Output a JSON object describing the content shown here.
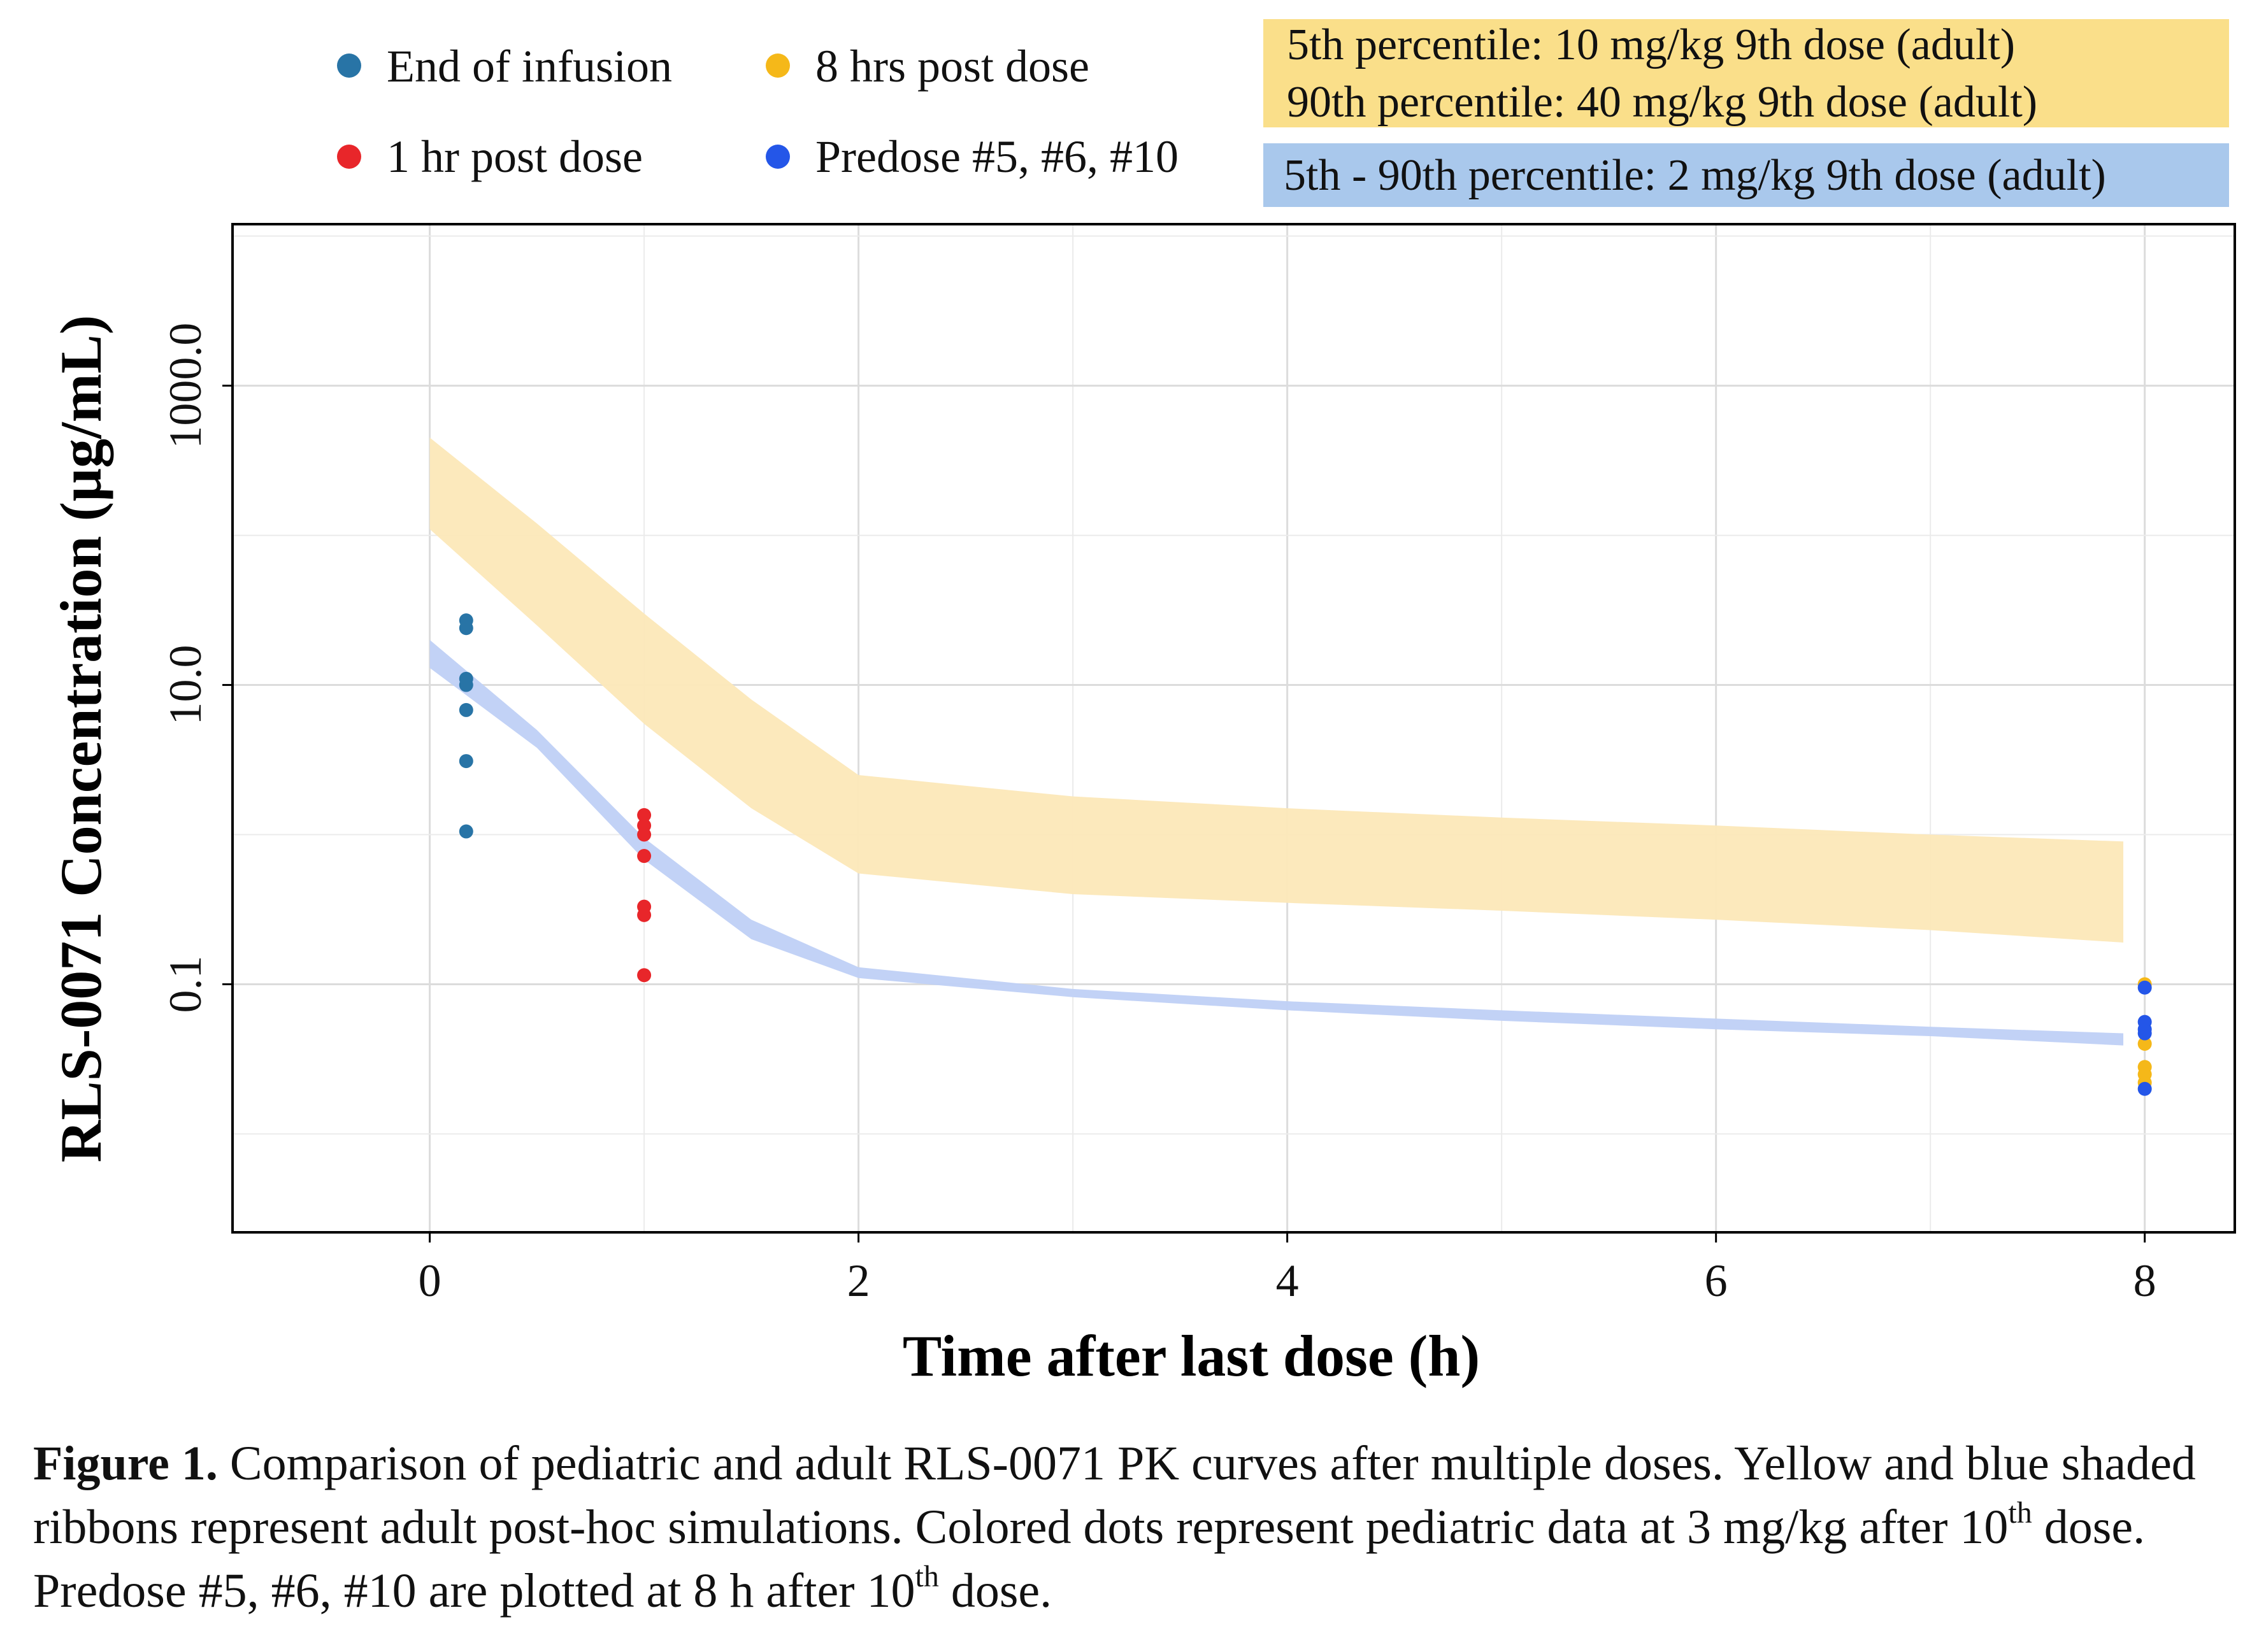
{
  "chart_data": {
    "type": "scatter",
    "xlabel": "Time after last dose (h)",
    "ylabel": "RLS-0071 Concentration (µg/mL)",
    "y_scale": "log",
    "xlim": [
      -0.92,
      8.42
    ],
    "ylim": [
      0.0022,
      12000
    ],
    "x_ticks": [
      0,
      2,
      4,
      6,
      8
    ],
    "x_tick_labels": [
      "0",
      "2",
      "4",
      "6",
      "8"
    ],
    "y_ticks": [
      0.1,
      10.0,
      1000.0
    ],
    "y_tick_labels": [
      "0.1",
      "10.0",
      "1000.0"
    ],
    "grid": true,
    "legend_position": "top",
    "series": [
      {
        "name": "End of infusion",
        "color": "#2874a6",
        "points": [
          [
            0.17,
            27
          ],
          [
            0.17,
            24
          ],
          [
            0.17,
            11
          ],
          [
            0.17,
            10
          ],
          [
            0.17,
            6.8
          ],
          [
            0.17,
            3.1
          ],
          [
            0.17,
            1.05
          ]
        ]
      },
      {
        "name": "1 hr post dose",
        "color": "#e8262a",
        "points": [
          [
            1.0,
            1.35
          ],
          [
            1.0,
            1.15
          ],
          [
            1.0,
            1.0
          ],
          [
            1.0,
            0.72
          ],
          [
            1.0,
            0.33
          ],
          [
            1.0,
            0.29
          ],
          [
            1.0,
            0.115
          ]
        ]
      },
      {
        "name": "8 hrs post dose",
        "color": "#f5b819",
        "points": [
          [
            8.0,
            0.1
          ],
          [
            8.0,
            0.04
          ],
          [
            8.0,
            0.028
          ],
          [
            8.0,
            0.025
          ],
          [
            8.0,
            0.022
          ]
        ]
      },
      {
        "name": "Predose #5, #6, #10",
        "color": "#2456e8",
        "points": [
          [
            8.0,
            0.095
          ],
          [
            8.0,
            0.056
          ],
          [
            8.0,
            0.05
          ],
          [
            8.0,
            0.047
          ],
          [
            8.0,
            0.02
          ]
        ]
      }
    ],
    "ribbons": [
      {
        "name": "5th percentile: 10 mg/kg 9th dose (adult) / 90th percentile: 40 mg/kg 9th dose (adult)",
        "color": "#fce8b8",
        "x": [
          0,
          0.5,
          1,
          1.5,
          2,
          3,
          4,
          5,
          6,
          7,
          7.9
        ],
        "lower": [
          110,
          25,
          5.5,
          1.5,
          0.55,
          0.4,
          0.35,
          0.31,
          0.27,
          0.23,
          0.19
        ],
        "upper": [
          450,
          120,
          30,
          8,
          2.5,
          1.8,
          1.5,
          1.3,
          1.15,
          1.0,
          0.9
        ]
      },
      {
        "name": "5th - 90th percentile: 2 mg/kg 9th dose (adult)",
        "color": "#bfd0f6",
        "x": [
          0,
          0.5,
          1,
          1.5,
          2,
          3,
          4,
          5,
          6,
          7,
          7.9
        ],
        "lower": [
          13,
          3.8,
          0.68,
          0.2,
          0.11,
          0.082,
          0.067,
          0.057,
          0.05,
          0.045,
          0.039
        ],
        "upper": [
          20,
          5.0,
          0.95,
          0.27,
          0.13,
          0.093,
          0.077,
          0.067,
          0.059,
          0.052,
          0.047
        ]
      }
    ]
  },
  "legend": {
    "items": [
      {
        "label": "End of infusion",
        "color": "#2874a6"
      },
      {
        "label": "8 hrs post dose",
        "color": "#f5b819"
      },
      {
        "label": "1 hr post dose",
        "color": "#e8262a"
      },
      {
        "label": "Predose #5, #6, #10",
        "color": "#2456e8"
      }
    ],
    "box_yellow": {
      "color": "#fadf8a",
      "line1": "5th percentile: 10 mg/kg 9th dose (adult)",
      "line2": "90th percentile: 40 mg/kg 9th dose (adult)"
    },
    "box_blue": {
      "color": "#a9c8ec",
      "line1": "5th - 90th percentile: 2 mg/kg 9th dose (adult)"
    }
  },
  "caption": {
    "label": "Figure 1.",
    "text1": " Comparison of pediatric and adult RLS-0071 PK curves after multiple doses. Yellow and blue shaded ribbons represent adult post-hoc simulations. Colored dots represent pediatric data at 3 mg/kg after 10",
    "sup1": "th",
    "text2": " dose. Predose #5, #6, #10 are plotted at 8 h after 10",
    "sup2": "th",
    "text3": " dose."
  }
}
